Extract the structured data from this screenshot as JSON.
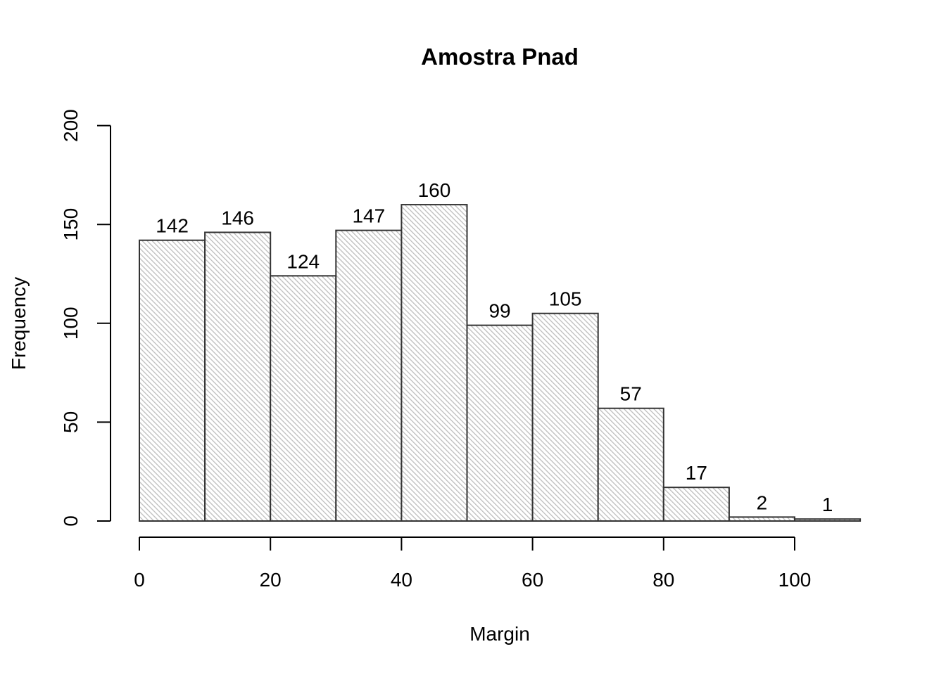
{
  "chart_data": {
    "type": "bar",
    "title": "Amostra Pnad",
    "xlabel": "Margin",
    "ylabel": "Frequency",
    "bins": [
      {
        "start": 0,
        "end": 10,
        "value": 142
      },
      {
        "start": 10,
        "end": 20,
        "value": 146
      },
      {
        "start": 20,
        "end": 30,
        "value": 124
      },
      {
        "start": 30,
        "end": 40,
        "value": 147
      },
      {
        "start": 40,
        "end": 50,
        "value": 160
      },
      {
        "start": 50,
        "end": 60,
        "value": 99
      },
      {
        "start": 60,
        "end": 70,
        "value": 105
      },
      {
        "start": 70,
        "end": 80,
        "value": 57
      },
      {
        "start": 80,
        "end": 90,
        "value": 17
      },
      {
        "start": 90,
        "end": 100,
        "value": 2
      },
      {
        "start": 100,
        "end": 110,
        "value": 1
      }
    ],
    "xticks": [
      0,
      20,
      40,
      60,
      80,
      100
    ],
    "yticks": [
      0,
      50,
      100,
      150,
      200
    ],
    "xaxis_range": [
      0,
      100
    ],
    "ylim": [
      0,
      200
    ],
    "grid": false,
    "bar_fill": "#bdbdbd",
    "bar_border": "#333333"
  }
}
